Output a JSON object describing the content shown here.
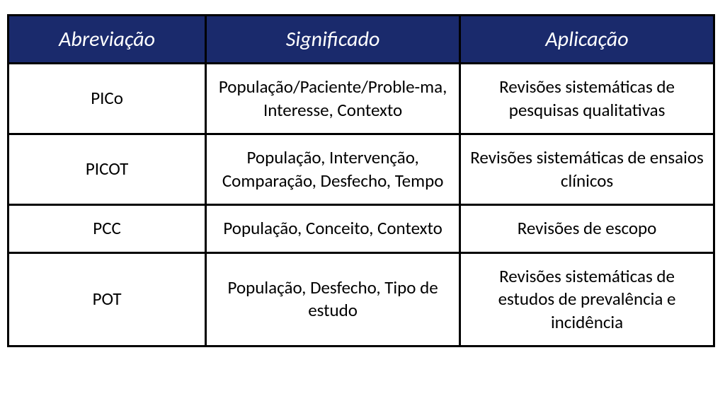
{
  "table": {
    "type": "table",
    "header_bg": "#1a2a6c",
    "header_fg": "#ffffff",
    "header_font_style": "italic",
    "header_fontsize": 30,
    "cell_bg": "#ffffff",
    "cell_fg": "#000000",
    "cell_fontsize": 25,
    "border_color": "#000000",
    "border_width": 3,
    "col_widths_pct": [
      28,
      36,
      36
    ],
    "columns": [
      "Abreviação",
      "Significado",
      "Aplicação"
    ],
    "rows": [
      {
        "abbr": "PICo",
        "meaning": "População/Paciente/Proble-ma, Interesse, Contexto",
        "application": "Revisões sistemáticas de pesquisas qualitativas"
      },
      {
        "abbr": "PICOT",
        "meaning": "População, Intervenção, Comparação, Desfecho, Tempo",
        "application": "Revisões sistemáticas de ensaios clínicos"
      },
      {
        "abbr": "PCC",
        "meaning": "População, Conceito, Contexto",
        "application": "Revisões de escopo"
      },
      {
        "abbr": "POT",
        "meaning": "População, Desfecho, Tipo de estudo",
        "application": "Revisões sistemáticas de estudos de prevalência e incidência"
      }
    ]
  }
}
